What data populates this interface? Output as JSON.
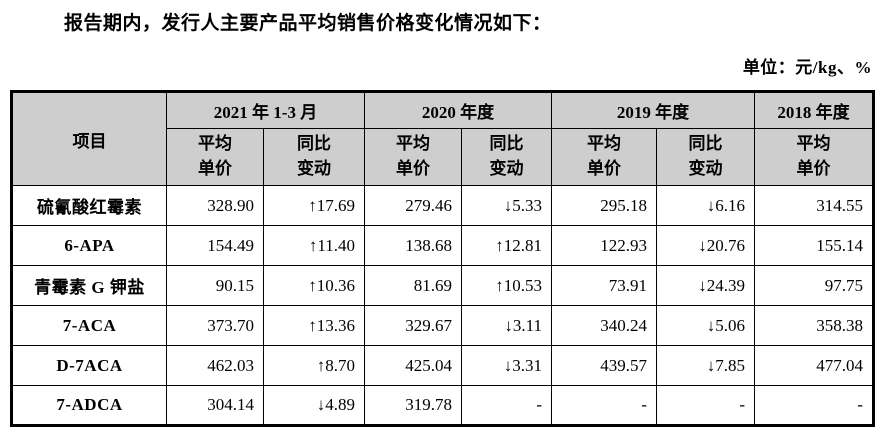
{
  "page": {
    "intro": "报告期内，发行人主要产品平均销售价格变化情况如下：",
    "unit_label": "单位：元/kg、%"
  },
  "colors": {
    "header_bg": "#cecece",
    "border": "#000000",
    "text": "#000000",
    "page_bg": "#ffffff"
  },
  "table": {
    "item_header": "项目",
    "groups": [
      {
        "label": "2021 年 1-3 月",
        "col_span": 2
      },
      {
        "label": "2020 年度",
        "col_span": 2
      },
      {
        "label": "2019 年度",
        "col_span": 2
      },
      {
        "label": "2018 年度",
        "col_span": 1
      }
    ],
    "subheaders": [
      "平均\n单价",
      "同比\n变动",
      "平均\n单价",
      "同比\n变动",
      "平均\n单价",
      "同比\n变动",
      "平均\n单价"
    ],
    "rows": [
      {
        "product": "硫氰酸红霉素",
        "values": [
          "328.90",
          "↑17.69",
          "279.46",
          "↓5.33",
          "295.18",
          "↓6.16",
          "314.55"
        ]
      },
      {
        "product": "6-APA",
        "values": [
          "154.49",
          "↑11.40",
          "138.68",
          "↑12.81",
          "122.93",
          "↓20.76",
          "155.14"
        ]
      },
      {
        "product": "青霉素 G 钾盐",
        "values": [
          "90.15",
          "↑10.36",
          "81.69",
          "↑10.53",
          "73.91",
          "↓24.39",
          "97.75"
        ]
      },
      {
        "product": "7-ACA",
        "values": [
          "373.70",
          "↑13.36",
          "329.67",
          "↓3.11",
          "340.24",
          "↓5.06",
          "358.38"
        ]
      },
      {
        "product": "D-7ACA",
        "values": [
          "462.03",
          "↑8.70",
          "425.04",
          "↓3.31",
          "439.57",
          "↓7.85",
          "477.04"
        ]
      },
      {
        "product": "7-ADCA",
        "values": [
          "304.14",
          "↓4.89",
          "319.78",
          "-",
          "-",
          "-",
          "-"
        ]
      }
    ]
  }
}
